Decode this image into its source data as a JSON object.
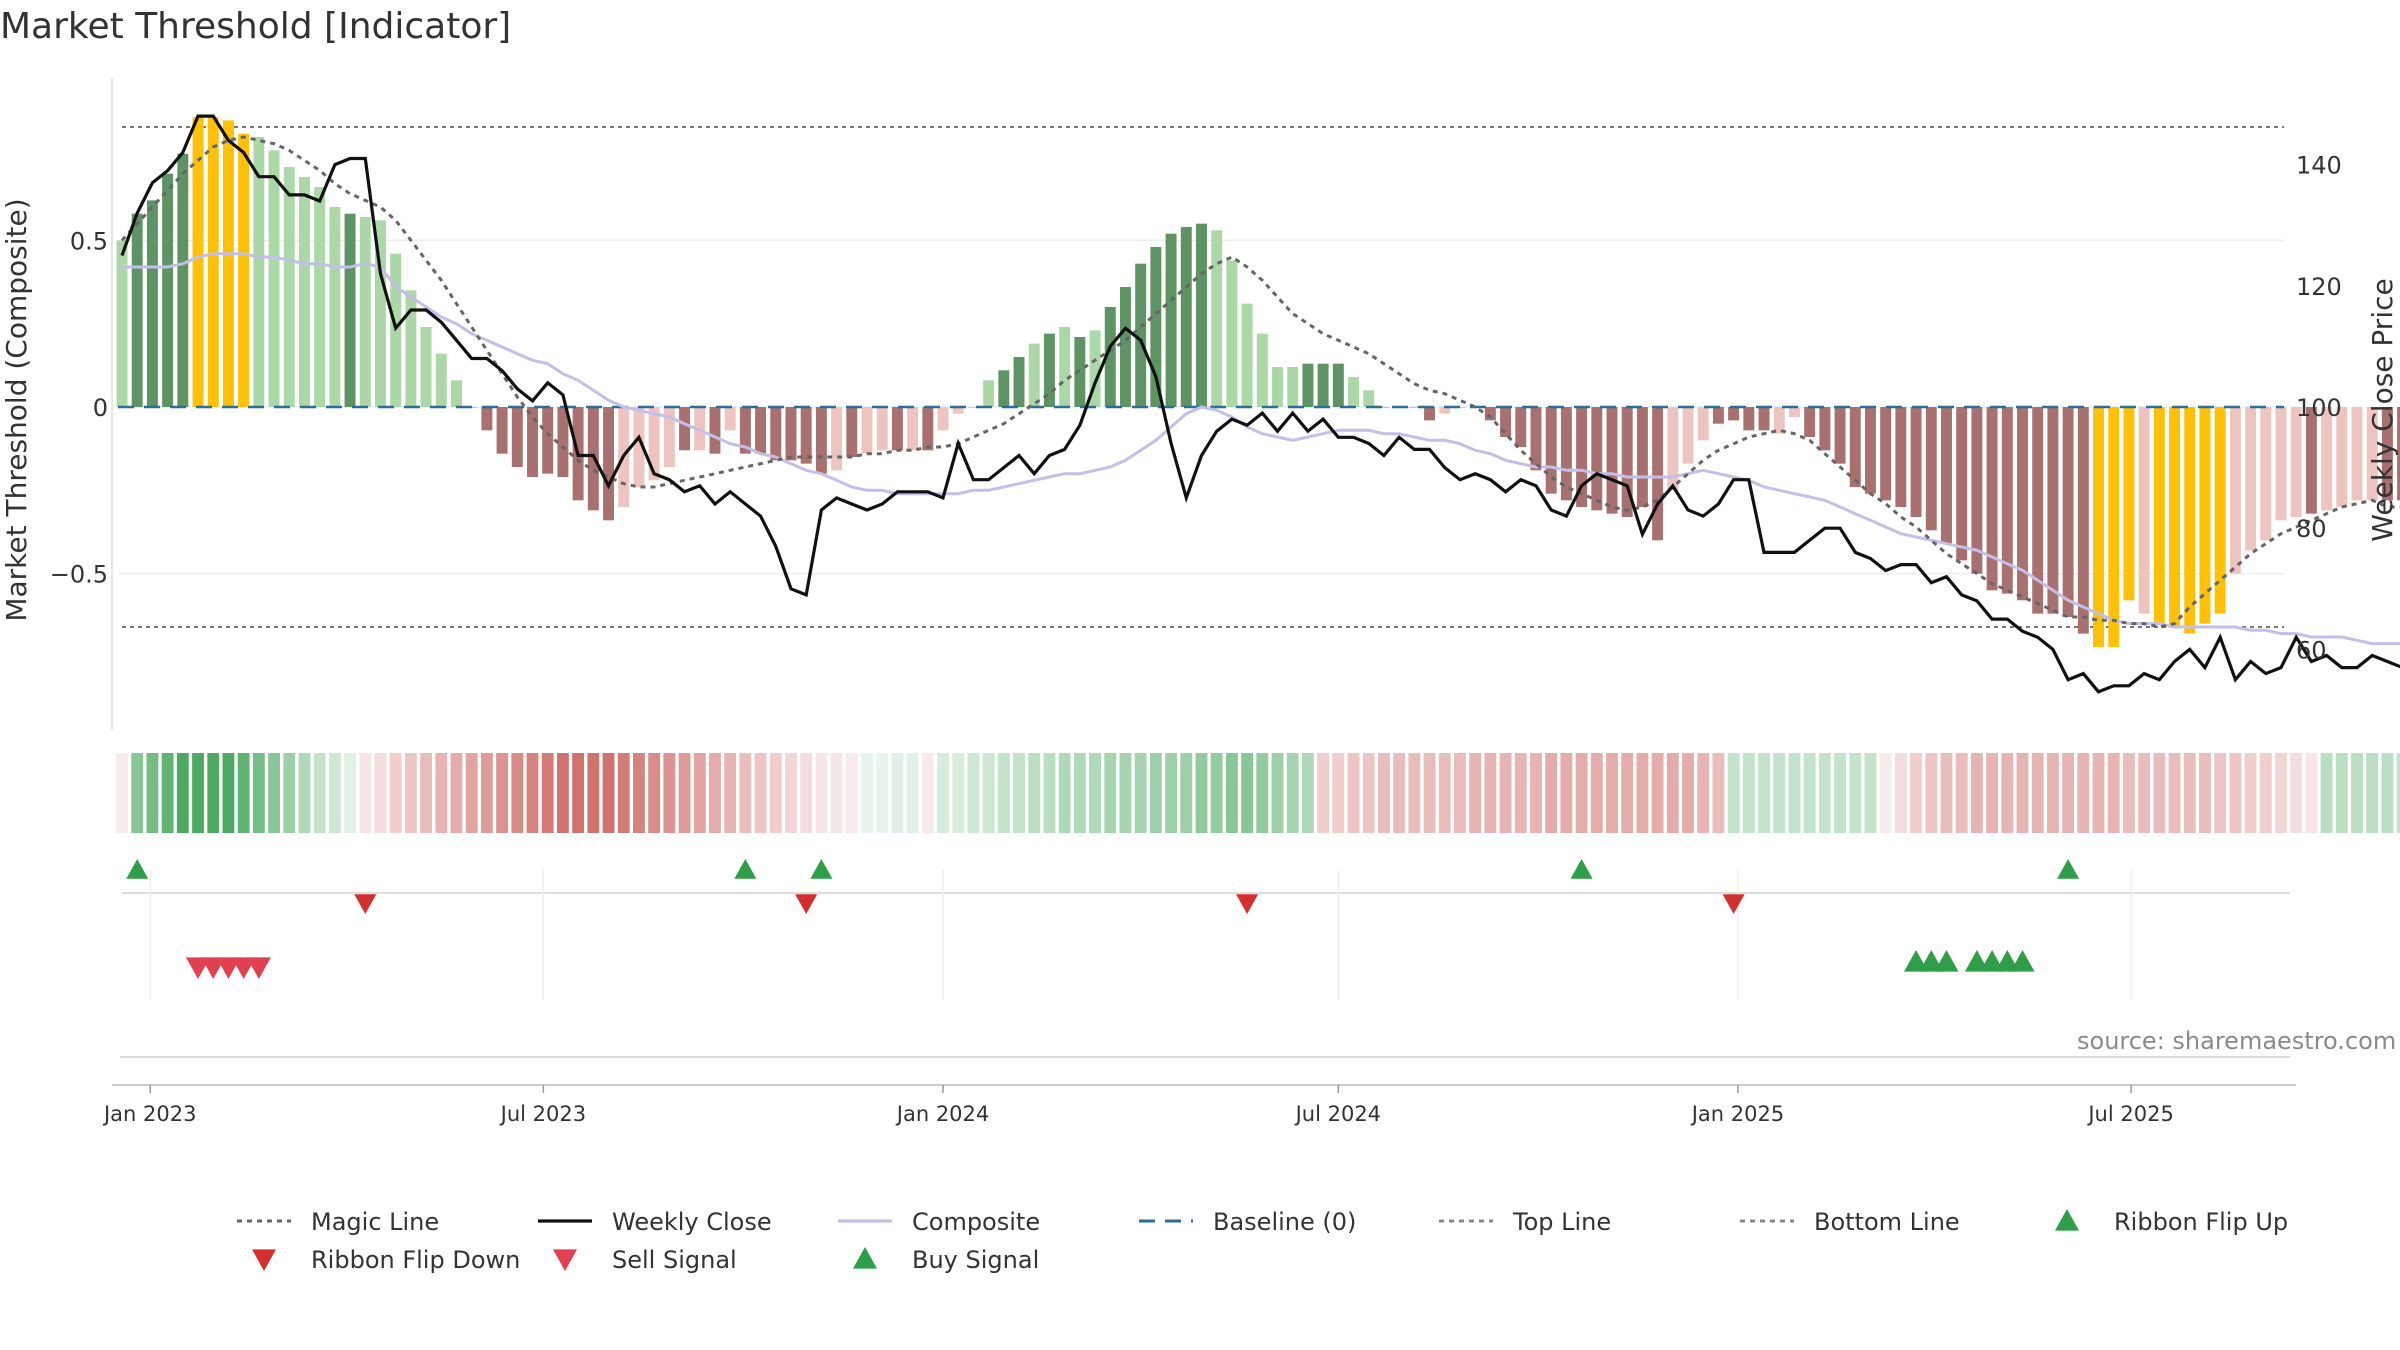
{
  "title": "Market Threshold [Indicator]",
  "source_label": "source: sharemaestro.com",
  "colors": {
    "bull_strong": "#5e9464",
    "bull_light": "#acd8a8",
    "bear_strong": "#a8706e",
    "bear_light": "#eec4c0",
    "extreme": "#ffc107",
    "weekly_close": "#111111",
    "composite": "#c4bfe8",
    "magic_line": "#666666",
    "baseline": "#2a6f97",
    "threshold_lines": "#777777",
    "flip_up": "#2e9e48",
    "flip_down": "#d32f2f",
    "sell_signal": "#e04050",
    "buy_signal": "#2e9e48"
  },
  "legend": [
    {
      "label": "Magic Line",
      "kind": "dotted-line",
      "color": "#666666"
    },
    {
      "label": "Weekly Close",
      "kind": "solid-line",
      "color": "#111111"
    },
    {
      "label": "Composite",
      "kind": "solid-line",
      "color": "#c4bfe8"
    },
    {
      "label": "Baseline (0)",
      "kind": "dashed-line",
      "color": "#2a6f97"
    },
    {
      "label": "Top Line",
      "kind": "dotted-line",
      "color": "#888888"
    },
    {
      "label": "Bottom Line",
      "kind": "dotted-line",
      "color": "#888888"
    },
    {
      "label": "Ribbon Flip Up",
      "kind": "triangle-up",
      "color": "#2e9e48"
    },
    {
      "label": "Ribbon Flip Down",
      "kind": "triangle-down",
      "color": "#d32f2f"
    },
    {
      "label": "Sell Signal",
      "kind": "triangle-down",
      "color": "#e04050"
    },
    {
      "label": "Buy Signal",
      "kind": "triangle-up",
      "color": "#2e9e48"
    }
  ],
  "chart_data": {
    "type": "bar",
    "x_axis": {
      "type": "date",
      "range": [
        "2022-12-19",
        "2025-09-15"
      ],
      "ticks": [
        "Jan 2023",
        "Jul 2023",
        "Jan 2024",
        "Jul 2024",
        "Jan 2025",
        "Jul 2025"
      ]
    },
    "y_left": {
      "label": "Market Threshold (Composite)",
      "ylim": [
        -0.98,
        0.97
      ],
      "ticks": [
        0.5,
        0,
        -0.5
      ],
      "tick_labels": [
        "0.5",
        "0",
        "−0.5"
      ]
    },
    "y_right": {
      "label": "Weekly Close Price",
      "ylim": [
        48,
        152
      ],
      "ticks": [
        140,
        120,
        100,
        80,
        60
      ]
    },
    "top_line": 0.84,
    "bottom_line": -0.66,
    "baseline": 0,
    "grid": "horizontal",
    "legend_position": "bottom",
    "series": [
      {
        "name": "Threshold Bars",
        "start_date": "2022-12-19",
        "step_days": 7,
        "values": [
          0.5,
          0.58,
          0.62,
          0.7,
          0.76,
          0.87,
          0.87,
          0.86,
          0.82,
          0.81,
          0.77,
          0.72,
          0.69,
          0.66,
          0.6,
          0.58,
          0.57,
          0.56,
          0.46,
          0.35,
          0.24,
          0.16,
          0.08,
          0.0,
          -0.07,
          -0.14,
          -0.18,
          -0.21,
          -0.2,
          -0.21,
          -0.28,
          -0.31,
          -0.34,
          -0.3,
          -0.24,
          -0.22,
          -0.18,
          -0.13,
          -0.13,
          -0.14,
          -0.07,
          -0.14,
          -0.14,
          -0.16,
          -0.16,
          -0.17,
          -0.2,
          -0.19,
          -0.15,
          -0.14,
          -0.13,
          -0.13,
          -0.13,
          -0.13,
          -0.07,
          -0.02,
          0.0,
          0.08,
          0.11,
          0.15,
          0.19,
          0.22,
          0.24,
          0.21,
          0.23,
          0.3,
          0.36,
          0.43,
          0.48,
          0.52,
          0.54,
          0.55,
          0.53,
          0.44,
          0.31,
          0.22,
          0.12,
          0.12,
          0.13,
          0.13,
          0.13,
          0.09,
          0.05,
          0.0,
          0.0,
          0.0,
          -0.04,
          -0.02,
          0.0,
          0.0,
          -0.04,
          -0.09,
          -0.12,
          -0.19,
          -0.26,
          -0.28,
          -0.3,
          -0.31,
          -0.32,
          -0.33,
          -0.3,
          -0.4,
          -0.25,
          -0.17,
          -0.1,
          -0.05,
          -0.04,
          -0.07,
          -0.07,
          -0.08,
          -0.03,
          -0.09,
          -0.13,
          -0.17,
          -0.24,
          -0.26,
          -0.28,
          -0.3,
          -0.33,
          -0.37,
          -0.41,
          -0.46,
          -0.5,
          -0.55,
          -0.56,
          -0.58,
          -0.62,
          -0.62,
          -0.63,
          -0.68,
          -0.72,
          -0.72,
          -0.58,
          -0.62,
          -0.65,
          -0.66,
          -0.68,
          -0.65,
          -0.62,
          -0.5,
          -0.43,
          -0.4,
          -0.34,
          -0.33,
          -0.32,
          -0.31,
          -0.3,
          -0.28,
          -0.28,
          -0.28,
          -0.28,
          -0.29,
          -0.33,
          -0.34,
          -0.33,
          -0.34,
          -0.36,
          -0.35
        ],
        "state": [
          "bl",
          "bs",
          "bs",
          "bs",
          "bs",
          "ex",
          "ex",
          "ex",
          "ex",
          "bl",
          "bl",
          "bl",
          "bl",
          "bl",
          "bl",
          "bs",
          "bl",
          "bl",
          "bl",
          "bl",
          "bl",
          "bl",
          "bl",
          "bl",
          "rs",
          "rs",
          "rs",
          "rs",
          "rs",
          "rs",
          "rs",
          "rs",
          "rs",
          "rl",
          "rl",
          "rl",
          "rl",
          "rs",
          "rl",
          "rs",
          "rl",
          "rs",
          "rs",
          "rs",
          "rs",
          "rs",
          "rs",
          "rl",
          "rs",
          "rl",
          "rl",
          "rs",
          "rl",
          "rs",
          "rl",
          "rl",
          "rl",
          "bl",
          "bs",
          "bs",
          "bl",
          "bs",
          "bl",
          "bs",
          "bl",
          "bs",
          "bs",
          "bs",
          "bs",
          "bs",
          "bs",
          "bs",
          "bl",
          "bl",
          "bl",
          "bl",
          "bl",
          "bl",
          "bs",
          "bs",
          "bs",
          "bl",
          "bl",
          "bl",
          "bl",
          "bl",
          "rs",
          "rl",
          "rl",
          "rl",
          "rs",
          "rs",
          "rs",
          "rs",
          "rs",
          "rs",
          "rs",
          "rs",
          "rs",
          "rs",
          "rs",
          "rs",
          "rl",
          "rl",
          "rl",
          "rs",
          "rs",
          "rs",
          "rs",
          "rl",
          "rl",
          "rs",
          "rs",
          "rs",
          "rs",
          "rs",
          "rs",
          "rs",
          "rs",
          "rs",
          "rs",
          "rs",
          "rs",
          "rs",
          "rs",
          "rs",
          "rs",
          "rs",
          "rs",
          "rs",
          "ex",
          "ex",
          "ex",
          "rl",
          "ex",
          "ex",
          "ex",
          "ex",
          "ex",
          "rl",
          "rl",
          "rl",
          "rl",
          "rl",
          "rs",
          "rl",
          "rl",
          "rl",
          "rl",
          "rs",
          "rs",
          "rl",
          "rl",
          "rs",
          "rl",
          "rs",
          "rs",
          "rl",
          "rs"
        ]
      },
      {
        "name": "Magic Line",
        "start_date": "2022-12-19",
        "step_days": 7,
        "values": [
          0.5,
          0.55,
          0.6,
          0.65,
          0.7,
          0.74,
          0.78,
          0.8,
          0.81,
          0.8,
          0.79,
          0.77,
          0.74,
          0.71,
          0.67,
          0.64,
          0.62,
          0.6,
          0.56,
          0.5,
          0.44,
          0.38,
          0.31,
          0.24,
          0.17,
          0.1,
          0.03,
          -0.03,
          -0.08,
          -0.12,
          -0.16,
          -0.19,
          -0.21,
          -0.23,
          -0.24,
          -0.24,
          -0.23,
          -0.22,
          -0.21,
          -0.2,
          -0.19,
          -0.18,
          -0.17,
          -0.16,
          -0.15,
          -0.15,
          -0.15,
          -0.15,
          -0.15,
          -0.14,
          -0.14,
          -0.13,
          -0.13,
          -0.12,
          -0.12,
          -0.11,
          -0.09,
          -0.07,
          -0.05,
          -0.02,
          0.01,
          0.04,
          0.08,
          0.11,
          0.14,
          0.17,
          0.2,
          0.24,
          0.28,
          0.32,
          0.36,
          0.4,
          0.43,
          0.45,
          0.42,
          0.38,
          0.33,
          0.28,
          0.25,
          0.22,
          0.2,
          0.18,
          0.16,
          0.13,
          0.1,
          0.07,
          0.05,
          0.04,
          0.02,
          0.0,
          -0.03,
          -0.08,
          -0.13,
          -0.17,
          -0.21,
          -0.24,
          -0.26,
          -0.28,
          -0.3,
          -0.31,
          -0.3,
          -0.28,
          -0.24,
          -0.2,
          -0.16,
          -0.13,
          -0.11,
          -0.09,
          -0.08,
          -0.07,
          -0.08,
          -0.1,
          -0.14,
          -0.18,
          -0.22,
          -0.26,
          -0.29,
          -0.33,
          -0.36,
          -0.4,
          -0.44,
          -0.47,
          -0.5,
          -0.53,
          -0.55,
          -0.57,
          -0.59,
          -0.61,
          -0.63,
          -0.63,
          -0.64,
          -0.64,
          -0.65,
          -0.65,
          -0.66,
          -0.65,
          -0.6,
          -0.56,
          -0.52,
          -0.48,
          -0.44,
          -0.41,
          -0.38,
          -0.36,
          -0.34,
          -0.32,
          -0.3,
          -0.29,
          -0.28,
          -0.3,
          -0.3,
          -0.31,
          -0.31,
          -0.32,
          -0.32,
          -0.33
        ]
      },
      {
        "name": "Composite",
        "start_date": "2022-12-19",
        "step_days": 7,
        "values": [
          0.42,
          0.42,
          0.42,
          0.42,
          0.43,
          0.45,
          0.46,
          0.46,
          0.46,
          0.45,
          0.45,
          0.44,
          0.43,
          0.43,
          0.42,
          0.42,
          0.43,
          0.42,
          0.36,
          0.33,
          0.3,
          0.27,
          0.25,
          0.22,
          0.2,
          0.18,
          0.16,
          0.14,
          0.13,
          0.1,
          0.08,
          0.05,
          0.02,
          0.0,
          -0.01,
          -0.02,
          -0.03,
          -0.05,
          -0.07,
          -0.09,
          -0.11,
          -0.12,
          -0.14,
          -0.15,
          -0.17,
          -0.19,
          -0.2,
          -0.22,
          -0.24,
          -0.25,
          -0.25,
          -0.26,
          -0.26,
          -0.26,
          -0.26,
          -0.26,
          -0.25,
          -0.25,
          -0.24,
          -0.23,
          -0.22,
          -0.21,
          -0.2,
          -0.2,
          -0.19,
          -0.18,
          -0.16,
          -0.13,
          -0.1,
          -0.06,
          -0.02,
          0.0,
          -0.01,
          -0.03,
          -0.06,
          -0.08,
          -0.09,
          -0.1,
          -0.09,
          -0.08,
          -0.07,
          -0.07,
          -0.07,
          -0.08,
          -0.08,
          -0.09,
          -0.1,
          -0.1,
          -0.11,
          -0.13,
          -0.14,
          -0.16,
          -0.17,
          -0.18,
          -0.18,
          -0.19,
          -0.19,
          -0.2,
          -0.2,
          -0.21,
          -0.21,
          -0.21,
          -0.21,
          -0.2,
          -0.19,
          -0.2,
          -0.21,
          -0.22,
          -0.24,
          -0.25,
          -0.26,
          -0.27,
          -0.28,
          -0.3,
          -0.32,
          -0.34,
          -0.36,
          -0.38,
          -0.39,
          -0.4,
          -0.41,
          -0.42,
          -0.43,
          -0.45,
          -0.47,
          -0.49,
          -0.52,
          -0.55,
          -0.58,
          -0.6,
          -0.62,
          -0.64,
          -0.65,
          -0.65,
          -0.65,
          -0.66,
          -0.66,
          -0.66,
          -0.66,
          -0.66,
          -0.67,
          -0.67,
          -0.68,
          -0.68,
          -0.69,
          -0.69,
          -0.69,
          -0.7,
          -0.71,
          -0.71,
          -0.71,
          -0.71,
          -0.71,
          -0.7,
          -0.71
        ]
      },
      {
        "name": "Weekly Close",
        "axis": "right",
        "start_date": "2022-12-19",
        "step_days": 7,
        "values": [
          125,
          132,
          137,
          139,
          142,
          148,
          148,
          144,
          142,
          138,
          138,
          135,
          135,
          134,
          140,
          141,
          141,
          122,
          113,
          116,
          116,
          114,
          111,
          108,
          108,
          106,
          103,
          101,
          104,
          102,
          92,
          92,
          87,
          92,
          95,
          89,
          88,
          86,
          87,
          84,
          86,
          84,
          82,
          77,
          70,
          69,
          83,
          85,
          84,
          83,
          84,
          86,
          86,
          86,
          85,
          94,
          88,
          88,
          90,
          92,
          89,
          92,
          93,
          97,
          104,
          110,
          113,
          111,
          105,
          94,
          85,
          92,
          96,
          98,
          97,
          99,
          96,
          99,
          96,
          98,
          95,
          95,
          94,
          92,
          95,
          93,
          93,
          90,
          88,
          89,
          88,
          86,
          88,
          87,
          83,
          82,
          87,
          89,
          88,
          87,
          79,
          84,
          87,
          83,
          82,
          84,
          88,
          88,
          76,
          76,
          76,
          78,
          80,
          80,
          76,
          75,
          73,
          74,
          74,
          71,
          72,
          69,
          68,
          65,
          65,
          63,
          62,
          60,
          55,
          56,
          53,
          54,
          54,
          56,
          55,
          58,
          60,
          57,
          62,
          55,
          58,
          56,
          57,
          62,
          58,
          59,
          57,
          57,
          59,
          58,
          57,
          59,
          58,
          59,
          59,
          61,
          64,
          58
        ],
        "ylim": [
          48,
          152
        ]
      }
    ],
    "ribbon": {
      "start_date": "2022-12-19",
      "step_days": 7,
      "values": [
        -0.1,
        0.6,
        0.7,
        0.8,
        0.9,
        0.9,
        0.9,
        0.9,
        0.8,
        0.7,
        0.6,
        0.5,
        0.4,
        0.3,
        0.25,
        0.15,
        -0.15,
        -0.2,
        -0.3,
        -0.35,
        -0.4,
        -0.45,
        -0.5,
        -0.55,
        -0.6,
        -0.65,
        -0.7,
        -0.75,
        -0.8,
        -0.85,
        -0.85,
        -0.85,
        -0.85,
        -0.8,
        -0.75,
        -0.7,
        -0.65,
        -0.6,
        -0.55,
        -0.5,
        -0.45,
        -0.4,
        -0.35,
        -0.3,
        -0.25,
        -0.2,
        -0.15,
        -0.15,
        -0.1,
        0.1,
        0.12,
        0.15,
        0.15,
        -0.1,
        0.2,
        0.2,
        0.25,
        0.25,
        0.3,
        0.3,
        0.35,
        0.35,
        0.4,
        0.4,
        0.4,
        0.45,
        0.45,
        0.45,
        0.5,
        0.5,
        0.5,
        0.55,
        0.55,
        0.6,
        0.6,
        0.55,
        0.5,
        0.45,
        0.4,
        -0.3,
        -0.3,
        -0.35,
        -0.35,
        -0.4,
        -0.4,
        -0.4,
        -0.4,
        -0.4,
        -0.4,
        -0.45,
        -0.45,
        -0.45,
        -0.45,
        -0.45,
        -0.5,
        -0.5,
        -0.5,
        -0.5,
        -0.5,
        -0.5,
        -0.5,
        -0.5,
        -0.5,
        -0.5,
        -0.45,
        -0.4,
        0.3,
        0.3,
        0.3,
        0.3,
        0.3,
        0.3,
        0.3,
        0.3,
        0.3,
        0.3,
        -0.1,
        -0.2,
        -0.3,
        -0.35,
        -0.4,
        -0.4,
        -0.45,
        -0.45,
        -0.45,
        -0.45,
        -0.45,
        -0.45,
        -0.45,
        -0.45,
        -0.45,
        -0.45,
        -0.4,
        -0.4,
        -0.4,
        -0.4,
        -0.4,
        -0.4,
        -0.35,
        -0.35,
        -0.3,
        -0.3,
        -0.25,
        -0.2,
        -0.15,
        0.35,
        0.35,
        0.35,
        0.35,
        0.35,
        0.3,
        0.3,
        0.3,
        0.3,
        0.3,
        0.3,
        0.3,
        0.25,
        0.25,
        0.25,
        0.25,
        0.25
      ]
    },
    "ribbon_flip_up": [
      "2022-12-26",
      "2023-10-02",
      "2023-11-06",
      "2024-10-21",
      "2025-06-02"
    ],
    "ribbon_flip_down": [
      "2023-04-10",
      "2023-10-30",
      "2024-05-20",
      "2024-12-30"
    ],
    "sell_signal": [
      "2023-01-23",
      "2023-01-30",
      "2023-02-06",
      "2023-02-13",
      "2023-02-20"
    ],
    "buy_signal": [
      "2025-03-24",
      "2025-03-31",
      "2025-04-07",
      "2025-04-21",
      "2025-04-28",
      "2025-05-05",
      "2025-05-12"
    ]
  }
}
